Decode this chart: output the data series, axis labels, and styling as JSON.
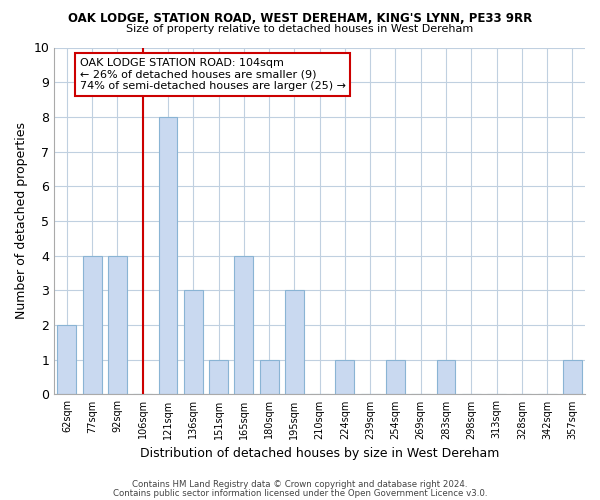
{
  "title": "OAK LODGE, STATION ROAD, WEST DEREHAM, KING'S LYNN, PE33 9RR",
  "subtitle": "Size of property relative to detached houses in West Dereham",
  "xlabel": "Distribution of detached houses by size in West Dereham",
  "ylabel": "Number of detached properties",
  "bins": [
    "62sqm",
    "77sqm",
    "92sqm",
    "106sqm",
    "121sqm",
    "136sqm",
    "151sqm",
    "165sqm",
    "180sqm",
    "195sqm",
    "210sqm",
    "224sqm",
    "239sqm",
    "254sqm",
    "269sqm",
    "283sqm",
    "298sqm",
    "313sqm",
    "328sqm",
    "342sqm",
    "357sqm"
  ],
  "values": [
    2,
    4,
    4,
    0,
    8,
    3,
    1,
    4,
    1,
    3,
    0,
    1,
    0,
    1,
    0,
    1,
    0,
    0,
    0,
    0,
    1
  ],
  "bar_color": "#c9d9f0",
  "bar_edge_color": "#8ab4d4",
  "vline_x_index": 3,
  "vline_color": "#cc0000",
  "annotation_text": "OAK LODGE STATION ROAD: 104sqm\n← 26% of detached houses are smaller (9)\n74% of semi-detached houses are larger (25) →",
  "annotation_box_edgecolor": "#cc0000",
  "ylim": [
    0,
    10
  ],
  "yticks": [
    0,
    1,
    2,
    3,
    4,
    5,
    6,
    7,
    8,
    9,
    10
  ],
  "footer1": "Contains HM Land Registry data © Crown copyright and database right 2024.",
  "footer2": "Contains public sector information licensed under the Open Government Licence v3.0.",
  "background_color": "#ffffff",
  "grid_color": "#c0d0e0"
}
